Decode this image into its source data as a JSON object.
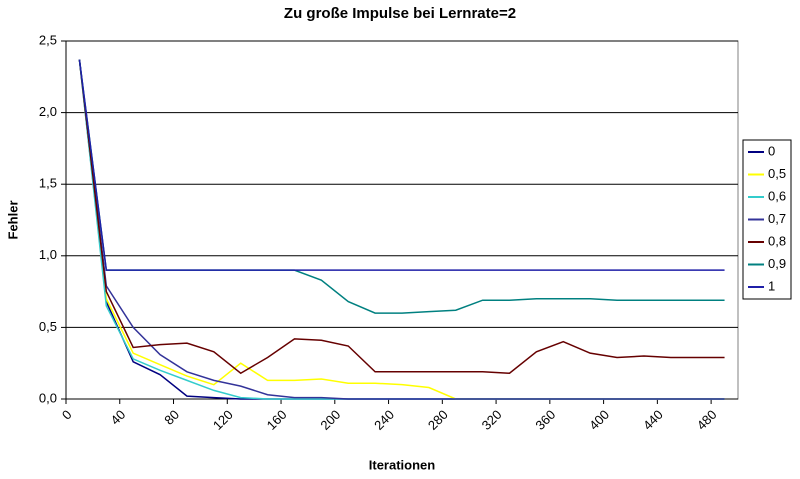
{
  "chart_data": {
    "type": "line",
    "title": "Zu große Impulse bei Lernrate=2",
    "x_label": "Iterationen",
    "y_label": "Fehler",
    "x": [
      10,
      30,
      50,
      70,
      90,
      110,
      130,
      150,
      170,
      190,
      210,
      230,
      250,
      270,
      290,
      310,
      330,
      350,
      370,
      390,
      410,
      430,
      450,
      470,
      490
    ],
    "xlim": [
      0,
      500
    ],
    "xticks": [
      0,
      40,
      80,
      120,
      160,
      200,
      240,
      280,
      320,
      360,
      400,
      440,
      480
    ],
    "ylim": [
      0,
      2.5
    ],
    "yticks": [
      {
        "value": 0,
        "label": "0,0"
      },
      {
        "value": 0.5,
        "label": "0,5"
      },
      {
        "value": 1,
        "label": "1,0"
      },
      {
        "value": 1.5,
        "label": "1,5"
      },
      {
        "value": 2,
        "label": "2,0"
      },
      {
        "value": 2.5,
        "label": "2,5"
      }
    ],
    "grid": true,
    "legend": "right",
    "series": [
      {
        "name": "0",
        "color": "#000080",
        "values": [
          2.37,
          0.68,
          0.26,
          0.17,
          0.02,
          0.01,
          0,
          0,
          0,
          0,
          0,
          0,
          0,
          0,
          0,
          0,
          0,
          0,
          0,
          0,
          0,
          0,
          0,
          0,
          0
        ]
      },
      {
        "name": "0,5",
        "color": "#ffff00",
        "values": [
          2.37,
          0.7,
          0.32,
          0.24,
          0.16,
          0.1,
          0.25,
          0.13,
          0.13,
          0.14,
          0.11,
          0.11,
          0.1,
          0.08,
          0,
          0,
          0,
          0,
          0,
          0,
          0,
          0,
          0,
          0,
          0
        ]
      },
      {
        "name": "0,6",
        "color": "#33cccc",
        "values": [
          2.37,
          0.65,
          0.28,
          0.2,
          0.13,
          0.06,
          0.01,
          0,
          0,
          0,
          0,
          0,
          0,
          0,
          0,
          0,
          0,
          0,
          0,
          0,
          0,
          0,
          0,
          0,
          0
        ]
      },
      {
        "name": "0,7",
        "color": "#333399",
        "values": [
          2.37,
          0.79,
          0.5,
          0.31,
          0.19,
          0.13,
          0.09,
          0.03,
          0.01,
          0.01,
          0,
          0,
          0,
          0,
          0,
          0,
          0,
          0,
          0,
          0,
          0,
          0,
          0,
          0,
          0
        ]
      },
      {
        "name": "0,8",
        "color": "#660000",
        "values": [
          2.37,
          0.75,
          0.36,
          0.38,
          0.39,
          0.33,
          0.18,
          0.29,
          0.42,
          0.41,
          0.37,
          0.19,
          0.19,
          0.19,
          0.19,
          0.19,
          0.18,
          0.33,
          0.4,
          0.32,
          0.29,
          0.3,
          0.29,
          0.29,
          0.29
        ]
      },
      {
        "name": "0,9",
        "color": "#008080",
        "values": [
          2.37,
          0.9,
          0.9,
          0.9,
          0.9,
          0.9,
          0.9,
          0.9,
          0.9,
          0.83,
          0.68,
          0.6,
          0.6,
          0.61,
          0.62,
          0.69,
          0.69,
          0.7,
          0.7,
          0.7,
          0.69,
          0.69,
          0.69,
          0.69,
          0.69
        ]
      },
      {
        "name": "1",
        "color": "#1f1fa8",
        "values": [
          2.37,
          0.9,
          0.9,
          0.9,
          0.9,
          0.9,
          0.9,
          0.9,
          0.9,
          0.9,
          0.9,
          0.9,
          0.9,
          0.9,
          0.9,
          0.9,
          0.9,
          0.9,
          0.9,
          0.9,
          0.9,
          0.9,
          0.9,
          0.9,
          0.9
        ]
      }
    ]
  }
}
